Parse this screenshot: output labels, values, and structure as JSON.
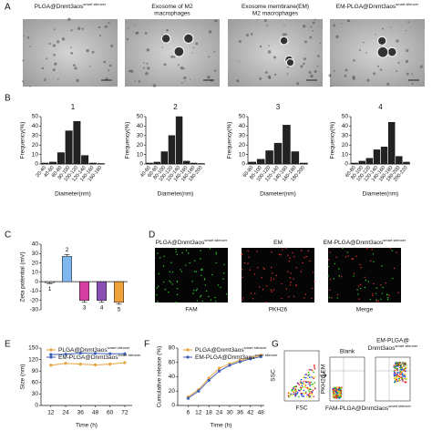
{
  "panels": {
    "A": {
      "letter": "A",
      "labels": [
        {
          "text": "PLGA@Dnmt3aos",
          "sup": "smart silencer"
        },
        {
          "text": "Exosome of M2"
        },
        {
          "text": "Exosome membrane(EM)"
        },
        {
          "text": "EM-PLGA@Dnmt3aos",
          "sup": "smart silencer"
        }
      ],
      "labels2": [
        "",
        "macrophages",
        "M2 macrophages",
        ""
      ]
    },
    "B": {
      "letter": "B"
    },
    "C": {
      "letter": "C"
    },
    "D": {
      "letter": "D",
      "top": [
        {
          "text": "PLGA@Dnmt3aos",
          "sup": "smart silencer"
        },
        {
          "text": "EM"
        },
        {
          "text": "EM-PLGA@Dnmt3aos",
          "sup": "smart silencer"
        }
      ],
      "bottom": [
        "FAM",
        "PKH26",
        "Merge"
      ]
    },
    "E": {
      "letter": "E"
    },
    "F": {
      "letter": "F"
    },
    "G": {
      "letter": "G",
      "ssc": "SSC",
      "fsc": "FSC",
      "pkh": "PKH26-EM",
      "blank": "Blank",
      "em1": "EM-PLGA@",
      "em2": {
        "text": "Dnmt3aos",
        "sup": "smart silencer"
      },
      "pct": "85%",
      "fam": {
        "text": "FAM-PLGA@Dnmt3aos",
        "sup": "smart silencer"
      }
    }
  },
  "chart_data": [
    {
      "type": "bar",
      "title": "1",
      "xlabel": "Diameter(nm)",
      "ylabel": "Frequency(%)",
      "color": "#222222",
      "categories": [
        "20-40",
        "40-60",
        "60-80",
        "80-100",
        "100-120",
        "120-140",
        "140-160",
        "160-180"
      ],
      "values": [
        1,
        2,
        12,
        35,
        45,
        9,
        1,
        0.5
      ],
      "ylim": [
        0,
        50
      ],
      "yticks": [
        0,
        10,
        20,
        30,
        40,
        50
      ]
    },
    {
      "type": "bar",
      "title": "2",
      "xlabel": "Diameter(nm)",
      "ylabel": "Frequency(%)",
      "color": "#222222",
      "categories": [
        "40-60",
        "60-80",
        "80-100",
        "100-120",
        "120-140",
        "140-160",
        "160-180",
        "180-200"
      ],
      "values": [
        1,
        2,
        13,
        30,
        50,
        3,
        1,
        0.5
      ],
      "ylim": [
        0,
        50
      ],
      "yticks": [
        0,
        10,
        20,
        30,
        40,
        50
      ]
    },
    {
      "type": "bar",
      "title": "3",
      "xlabel": "Diameter(nm)",
      "ylabel": "Frequency(%)",
      "color": "#222222",
      "categories": [
        "60-80",
        "80-100",
        "100-120",
        "120-140",
        "140-160",
        "160-180",
        "180-200"
      ],
      "values": [
        2,
        5,
        14,
        22,
        41,
        13,
        1
      ],
      "ylim": [
        0,
        50
      ],
      "yticks": [
        0,
        10,
        20,
        30,
        40,
        50
      ]
    },
    {
      "type": "bar",
      "title": "4",
      "xlabel": "Diameter(nm)",
      "ylabel": "Frequency(%)",
      "color": "#222222",
      "categories": [
        "60-80",
        "80-100",
        "100-120",
        "120-140",
        "140-160",
        "160-180",
        "180-200",
        "200-220"
      ],
      "values": [
        1,
        3,
        6,
        15,
        18,
        44,
        8,
        2
      ],
      "ylim": [
        0,
        50
      ],
      "yticks": [
        0,
        10,
        20,
        30,
        40,
        50
      ]
    },
    {
      "type": "bar",
      "ylabel": "Zeta potential (mV)",
      "categories": [
        "1",
        "2",
        "3",
        "4",
        "5"
      ],
      "values": [
        -1,
        27,
        -20,
        -20,
        -22
      ],
      "errors": [
        1,
        2,
        2,
        2,
        2
      ],
      "colors": [
        "#ffffff",
        "#7fb8ef",
        "#d43fa0",
        "#8a4fb3",
        "#f0a23a"
      ],
      "ylim": [
        -30,
        40
      ],
      "yticks": [
        -30,
        -20,
        -10,
        0,
        10,
        20,
        30,
        40
      ]
    },
    {
      "type": "line",
      "xlabel": "Time (h)",
      "ylabel": "Size (nm)",
      "x": [
        12,
        24,
        36,
        48,
        60,
        72
      ],
      "xlim": [
        4,
        78
      ],
      "xticks": [
        12,
        24,
        36,
        48,
        60,
        72
      ],
      "ylim": [
        0,
        150
      ],
      "yticks": [
        0,
        30,
        60,
        90,
        120,
        150
      ],
      "series": [
        {
          "name": "PLGA@Dnmt3aos",
          "name_sup": "smart silencer",
          "color": "#e8a33d",
          "values": [
            105,
            110,
            108,
            106,
            108,
            112
          ],
          "errors": [
            4,
            4,
            4,
            4,
            4,
            4
          ]
        },
        {
          "name": "EM-PLGA@Dnmt3aos",
          "name_sup": "smart silencer",
          "color": "#3d5fb8",
          "values": [
            133,
            134,
            137,
            136,
            135,
            135
          ],
          "errors": [
            4,
            4,
            4,
            4,
            4,
            4
          ]
        }
      ]
    },
    {
      "type": "line",
      "xlabel": "Time (h)",
      "ylabel": "Cumulative release (%)",
      "x": [
        6,
        12,
        18,
        24,
        30,
        36,
        42,
        48
      ],
      "xlim": [
        0,
        50
      ],
      "xticks": [
        6,
        12,
        18,
        24,
        30,
        36,
        42,
        48
      ],
      "ylim": [
        0,
        80
      ],
      "yticks": [
        0,
        20,
        40,
        60,
        80
      ],
      "series": [
        {
          "name": "PLGA@Dnmt3aos",
          "name_sup": "smart silencer",
          "color": "#e8a33d",
          "values": [
            12,
            22,
            38,
            52,
            58,
            63,
            66,
            70
          ],
          "errors": [
            2,
            2,
            2,
            2,
            2,
            2,
            2,
            2
          ]
        },
        {
          "name": "EM-PLGA@Dnmt3aos",
          "name_sup": "smart silencer",
          "color": "#3d5fb8",
          "values": [
            10,
            20,
            35,
            48,
            56,
            61,
            65,
            68
          ],
          "errors": [
            2,
            2,
            2,
            2,
            2,
            2,
            2,
            2
          ]
        }
      ]
    }
  ]
}
